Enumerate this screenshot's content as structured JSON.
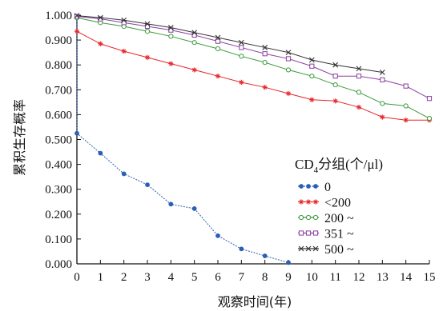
{
  "chart_data": {
    "type": "line",
    "xlabel": "观察时间(年)",
    "ylabel": "累积生存概率",
    "xlim": [
      0,
      15
    ],
    "ylim": [
      0,
      1
    ],
    "x_ticks": [
      "0",
      "1",
      "2",
      "3",
      "4",
      "5",
      "6",
      "7",
      "8",
      "9",
      "10",
      "11",
      "12",
      "13",
      "14",
      "15"
    ],
    "y_ticks": [
      "0.000",
      "0.100",
      "0.200",
      "0.300",
      "0.400",
      "0.500",
      "0.600",
      "0.700",
      "0.800",
      "0.900",
      "1.000"
    ],
    "grid": false,
    "legend": {
      "placement": "right",
      "title_main": "CD",
      "title_sub": "4",
      "title_rest": "分组(个/μl)"
    },
    "series": [
      {
        "name": "0",
        "color": "#2b5fb4",
        "marker": "dot",
        "x": [
          0,
          1,
          2,
          3,
          4,
          5,
          6,
          7,
          8,
          9
        ],
        "y": [
          0.525,
          0.445,
          0.362,
          0.318,
          0.24,
          0.222,
          0.113,
          0.06,
          0.032,
          0.005
        ]
      },
      {
        "name": "<200",
        "color": "#e8262a",
        "marker": "star",
        "x": [
          0,
          1,
          2,
          3,
          4,
          5,
          6,
          7,
          8,
          9,
          10,
          11,
          12,
          13,
          14,
          15
        ],
        "y": [
          0.935,
          0.885,
          0.855,
          0.83,
          0.805,
          0.78,
          0.755,
          0.73,
          0.71,
          0.685,
          0.66,
          0.655,
          0.63,
          0.59,
          0.578,
          0.578
        ]
      },
      {
        "name": "200 ~",
        "color": "#3a9a3a",
        "marker": "circle",
        "x": [
          0,
          1,
          2,
          3,
          4,
          5,
          6,
          7,
          8,
          9,
          10,
          11,
          12,
          13,
          14,
          15
        ],
        "y": [
          0.99,
          0.97,
          0.955,
          0.935,
          0.915,
          0.89,
          0.865,
          0.835,
          0.81,
          0.78,
          0.755,
          0.72,
          0.69,
          0.645,
          0.635,
          0.585
        ]
      },
      {
        "name": "351 ~",
        "color": "#8a3fa0",
        "marker": "square",
        "x": [
          0,
          1,
          2,
          3,
          4,
          5,
          6,
          7,
          8,
          9,
          10,
          11,
          12,
          13,
          14,
          15
        ],
        "y": [
          0.995,
          0.985,
          0.97,
          0.955,
          0.94,
          0.92,
          0.895,
          0.87,
          0.845,
          0.825,
          0.795,
          0.755,
          0.755,
          0.74,
          0.715,
          0.665
        ]
      },
      {
        "name": "500 ~",
        "color": "#333333",
        "marker": "x",
        "x": [
          0,
          1,
          2,
          3,
          4,
          5,
          6,
          7,
          8,
          9,
          10,
          11,
          12,
          13
        ],
        "y": [
          0.998,
          0.99,
          0.98,
          0.965,
          0.95,
          0.93,
          0.91,
          0.89,
          0.87,
          0.85,
          0.82,
          0.8,
          0.785,
          0.77
        ]
      }
    ]
  }
}
